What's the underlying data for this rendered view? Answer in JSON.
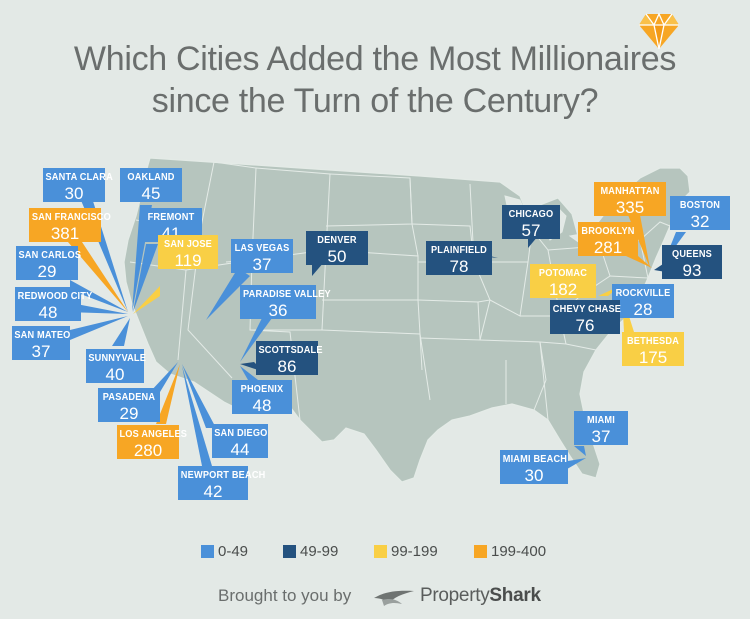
{
  "title": {
    "line1": "Which Cities Added the Most Millionaires",
    "line2": "since the Turn of the Century?"
  },
  "colors": {
    "0-49": "#4a90d9",
    "49-99": "#24527f",
    "99-199": "#f9cf45",
    "199-400": "#f7a624",
    "land": "#b6c5be",
    "border": "#e4ebe7",
    "background": "#e3e9e6"
  },
  "icons": {
    "top_right": "diamond-icon",
    "brand": "propertyshark-logo-icon"
  },
  "legend": [
    {
      "label": "0-49",
      "bin": "0-49"
    },
    {
      "label": "49-99",
      "bin": "49-99"
    },
    {
      "label": "99-199",
      "bin": "99-199"
    },
    {
      "label": "199-400",
      "bin": "199-400"
    }
  ],
  "cities": [
    {
      "name": "SANTA CLARA",
      "value": "30",
      "bin": "0-49"
    },
    {
      "name": "OAKLAND",
      "value": "45",
      "bin": "0-49"
    },
    {
      "name": "SAN FRANCISCO",
      "value": "381",
      "bin": "199-400"
    },
    {
      "name": "FREMONT",
      "value": "41",
      "bin": "0-49"
    },
    {
      "name": "SAN CARLOS",
      "value": "29",
      "bin": "0-49"
    },
    {
      "name": "SAN JOSE",
      "value": "119",
      "bin": "99-199"
    },
    {
      "name": "LAS VEGAS",
      "value": "37",
      "bin": "0-49"
    },
    {
      "name": "DENVER",
      "value": "50",
      "bin": "49-99"
    },
    {
      "name": "REDWOOD CITY",
      "value": "48",
      "bin": "0-49"
    },
    {
      "name": "PARADISE VALLEY",
      "value": "36",
      "bin": "0-49"
    },
    {
      "name": "SAN MATEO",
      "value": "37",
      "bin": "0-49"
    },
    {
      "name": "SUNNYVALE",
      "value": "40",
      "bin": "0-49"
    },
    {
      "name": "SCOTTSDALE",
      "value": "86",
      "bin": "49-99"
    },
    {
      "name": "PASADENA",
      "value": "29",
      "bin": "0-49"
    },
    {
      "name": "PHOENIX",
      "value": "48",
      "bin": "0-49"
    },
    {
      "name": "LOS ANGELES",
      "value": "280",
      "bin": "199-400"
    },
    {
      "name": "SAN DIEGO",
      "value": "44",
      "bin": "0-49"
    },
    {
      "name": "NEWPORT BEACH",
      "value": "42",
      "bin": "0-49"
    },
    {
      "name": "CHICAGO",
      "value": "57",
      "bin": "49-99"
    },
    {
      "name": "PLAINFIELD",
      "value": "78",
      "bin": "49-99"
    },
    {
      "name": "MANHATTAN",
      "value": "335",
      "bin": "199-400"
    },
    {
      "name": "BOSTON",
      "value": "32",
      "bin": "0-49"
    },
    {
      "name": "BROOKLYN",
      "value": "281",
      "bin": "199-400"
    },
    {
      "name": "QUEENS",
      "value": "93",
      "bin": "49-99"
    },
    {
      "name": "POTOMAC",
      "value": "182",
      "bin": "99-199"
    },
    {
      "name": "ROCKVILLE",
      "value": "28",
      "bin": "0-49"
    },
    {
      "name": "CHEVY CHASE",
      "value": "76",
      "bin": "49-99"
    },
    {
      "name": "BETHESDA",
      "value": "175",
      "bin": "99-199"
    },
    {
      "name": "MIAMI",
      "value": "37",
      "bin": "0-49"
    },
    {
      "name": "MIAMI BEACH",
      "value": "30",
      "bin": "0-49"
    }
  ],
  "footer": {
    "credit": "Brought to you by",
    "brand_light": "Property",
    "brand_bold": "Shark"
  }
}
